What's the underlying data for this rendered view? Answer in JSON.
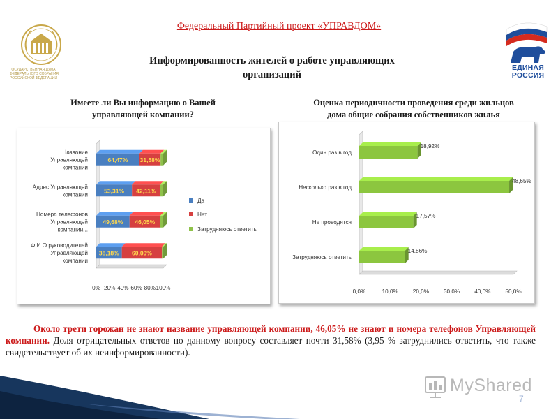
{
  "header": {
    "project_title": "Федеральный Партийный проект «УПРАВДОМ»",
    "main_title_line1": "Информированность жителей о работе управляющих",
    "main_title_line2": "организаций"
  },
  "logos": {
    "duma_caption": "Государственная Дума Федерального Собрания Российской Федерации",
    "duma_emblem_text": "ГОСУДАРСТВЕННАЯ ДУМА",
    "party_name_line1": "ЕДИНАЯ",
    "party_name_line2": "РОССИЯ"
  },
  "left_title_line1": "Имеете ли Вы информацию о Вашей",
  "left_title_line2": "управляющей компании?",
  "right_title_line1": "Оценка периодичности проведения среди жильцов",
  "right_title_line2": "дома общие собрания собственников жилья",
  "colors": {
    "yes": "#4a7fc0",
    "no": "#d64040",
    "unsure": "#8fc24a",
    "right_bar": "#8cc63f",
    "accent_red": "#cc1a1a"
  },
  "chart_data": [
    {
      "type": "bar",
      "orientation": "horizontal",
      "stacked": true,
      "percent_stacked": true,
      "categories": [
        [
          "Название",
          "Управляющей",
          "компании"
        ],
        [
          "Адрес Управляющей",
          "компании"
        ],
        [
          "Номера телефонов",
          "Управляющей",
          "компании..."
        ],
        [
          "Ф.И.О руководителей",
          "Управляющей",
          "компании"
        ]
      ],
      "series": [
        {
          "name": "Да",
          "values": [
            64.47,
            53.31,
            49.68,
            38.18
          ],
          "labels": [
            "64,47%",
            "53,31%",
            "49,68%",
            "38,18%"
          ]
        },
        {
          "name": "Нет",
          "values": [
            31.58,
            42.11,
            46.05,
            60.0
          ],
          "labels": [
            "31,58%",
            "42,11%",
            "46,05%",
            "60,00%"
          ]
        },
        {
          "name": "Затрудняюсь ответить",
          "values": [
            3.95,
            4.58,
            4.27,
            1.82
          ]
        }
      ],
      "x_ticks": [
        "0%",
        "20%",
        "40%",
        "60%",
        "80%",
        "100%"
      ],
      "xlim": [
        0,
        100
      ],
      "legend": "right"
    },
    {
      "type": "bar",
      "orientation": "horizontal",
      "categories": [
        "Один раз в год",
        "Несколько раз в год",
        "Не проводятся",
        "Затрудняюсь ответить"
      ],
      "values": [
        18.92,
        48.65,
        17.57,
        14.86
      ],
      "labels": [
        "18,92%",
        "48,65%",
        "17,57%",
        "14,86%"
      ],
      "x_ticks": [
        "0,0%",
        "10,0%",
        "20,0%",
        "30,0%",
        "40,0%",
        "50,0%"
      ],
      "xlim": [
        0,
        50
      ],
      "legend": "none"
    }
  ],
  "body": {
    "highlight": "Около трети горожан не знают название управляющей компании, 46,05% не знают и номера телефонов Управляющей компании.",
    "rest": " Доля отрицательных ответов по данному вопросу составляет почти 31,58% (3,95 % затруднились ответить, что также свидетельствует об их неинформированности)."
  },
  "footer": {
    "watermark": "MyShared",
    "page_number": "7"
  }
}
